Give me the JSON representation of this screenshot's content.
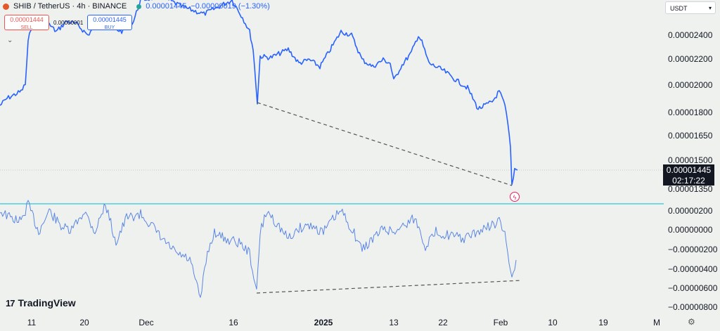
{
  "header": {
    "symbol": "SHIB / TetherUS · 4h · BINANCE",
    "last_price": "0.00001445",
    "change": "−0.00000019 (−1.30%)",
    "sell_price": "0.00001444",
    "sell_label": "SELL",
    "buy_price": "0.00001445",
    "buy_label": "BUY",
    "spread": "0.00000001"
  },
  "currency": "USDT",
  "price_label": {
    "value": "0.00001445",
    "countdown": "02:17:22"
  },
  "brand": "TradingView",
  "colors": {
    "line": "#2962ff",
    "indicator": "#5b86e5",
    "trend": "#555555",
    "separator": "#00bcd4",
    "background": "#eef1ee"
  },
  "chart_data": [
    {
      "type": "line",
      "series": [
        {
          "values": []
        }
      ],
      "x_ticks": [
        "11",
        "20",
        "Dec",
        "16",
        "2025",
        "13",
        "22",
        "Feb",
        "10",
        "19",
        "M"
      ],
      "y_ticks": [
        "0.00002400",
        "0.00002200",
        "0.00002000",
        "0.00001800",
        "0.00001650",
        "0.00001500",
        "0.00001350"
      ],
      "key_points": [
        {
          "x": "Dec 20",
          "y": 1.85e-05
        },
        {
          "x": "Feb 3",
          "y": 1.38e-05
        }
      ],
      "trendline": {
        "from": 1.85e-05,
        "to": 1.38e-05,
        "style": "dashed"
      }
    },
    {
      "type": "line",
      "series": [
        {
          "values": []
        }
      ],
      "y_ticks": [
        "0.00000200",
        "0.00000000",
        "−0.00000200",
        "−0.00000400",
        "−0.00000600",
        "−0.00000800"
      ],
      "key_points": [
        {
          "x": "Dec 20",
          "y": -6.3e-06
        },
        {
          "x": "Feb 3",
          "y": -5.1e-06
        }
      ],
      "trendline": {
        "from": -6.3e-06,
        "to": -5.1e-06,
        "style": "dashed"
      }
    }
  ]
}
